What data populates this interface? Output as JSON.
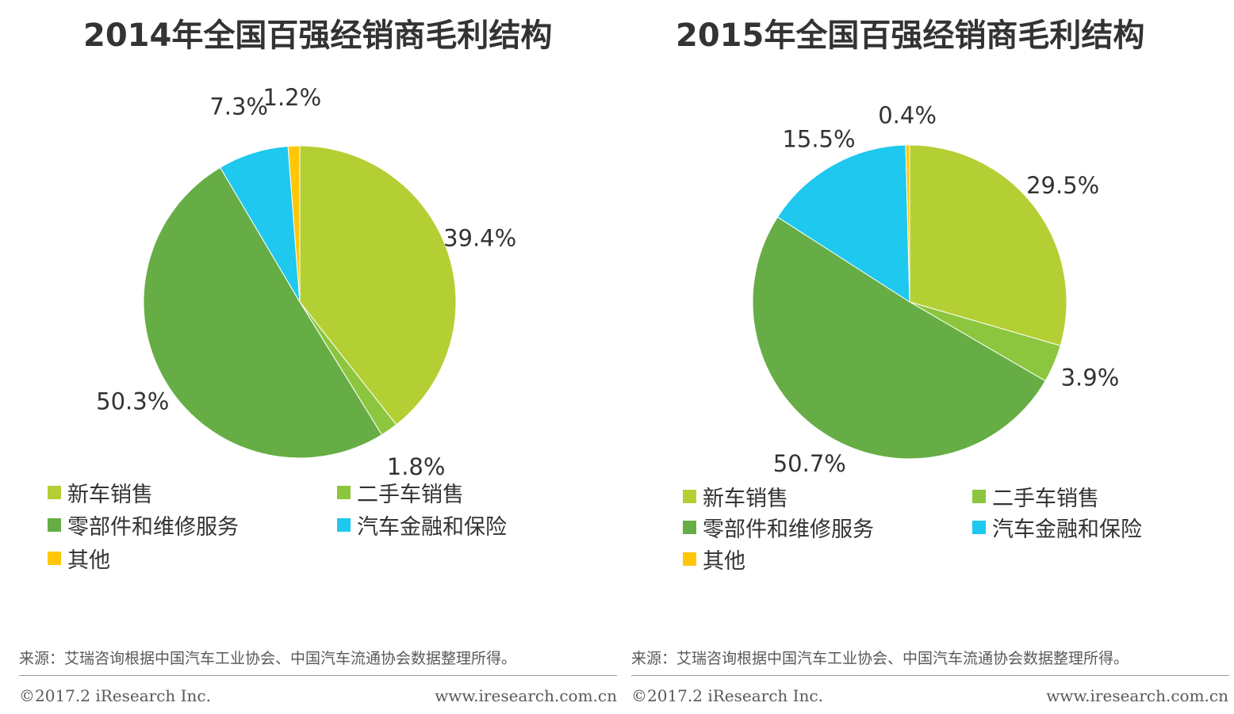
{
  "colors": {
    "new_car": "#b4cf34",
    "used_car": "#8cc63f",
    "parts_service": "#66ad45",
    "finance_insurance": "#1ec8ef",
    "other": "#ffc60a"
  },
  "chart_data": [
    {
      "type": "pie",
      "title": "2014年全国百强经销商毛利结构",
      "slices": [
        {
          "label": "新车销售",
          "value": 39.4,
          "value_label": "39.4%"
        },
        {
          "label": "二手车销售",
          "value": 1.8,
          "value_label": "1.8%"
        },
        {
          "label": "零部件和维修服务",
          "value": 50.3,
          "value_label": "50.3%"
        },
        {
          "label": "汽车金融和保险",
          "value": 7.3,
          "value_label": "7.3%"
        },
        {
          "label": "其他",
          "value": 1.2,
          "value_label": "1.2%"
        }
      ],
      "legend_position": "bottom"
    },
    {
      "type": "pie",
      "title": "2015年全国百强经销商毛利结构",
      "slices": [
        {
          "label": "新车销售",
          "value": 29.5,
          "value_label": "29.5%"
        },
        {
          "label": "二手车销售",
          "value": 3.9,
          "value_label": "3.9%"
        },
        {
          "label": "零部件和维修服务",
          "value": 50.7,
          "value_label": "50.7%"
        },
        {
          "label": "汽车金融和保险",
          "value": 15.5,
          "value_label": "15.5%"
        },
        {
          "label": "其他",
          "value": 0.4,
          "value_label": "0.4%"
        }
      ],
      "legend_position": "bottom"
    }
  ],
  "footer": {
    "source": "来源：艾瑞咨询根据中国汽车工业协会、中国汽车流通协会数据整理所得。",
    "copyright": "©2017.2 iResearch Inc.",
    "website": "www.iresearch.com.cn"
  }
}
